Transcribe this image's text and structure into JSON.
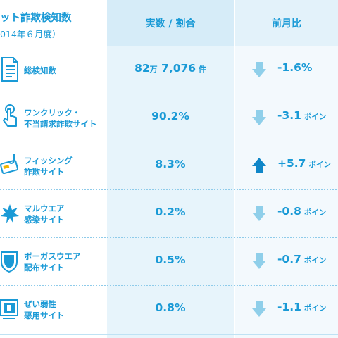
{
  "header": {
    "title": "ット詐欺検知数",
    "subtitle": "014年６月度）",
    "col_ratio": "実数 / 割合",
    "col_mom": "前月比"
  },
  "rows": [
    {
      "label1": "総検知数",
      "label2": "",
      "icon": "document-list-icon",
      "value_main": "82",
      "value_man": "万",
      "value_rest": " 7,076",
      "value_ken": " 件",
      "direction": "down",
      "change": "-1.6%",
      "unit": ""
    },
    {
      "label1": "ワンクリック・",
      "label2": "不当請求詐欺サイト",
      "icon": "hand-click-icon",
      "value": "90.2%",
      "direction": "down",
      "change": "-3.1",
      "unit": "ポイン"
    },
    {
      "label1": "フィッシング",
      "label2": "詐欺サイト",
      "icon": "fishing-hook-card-icon",
      "value": "8.3%",
      "direction": "up",
      "change": "+5.7",
      "unit": "ポイン"
    },
    {
      "label1": "マルウエア",
      "label2": "感染サイト",
      "icon": "malware-burst-icon",
      "value": "0.2%",
      "direction": "down",
      "change": "-0.8",
      "unit": "ポイン"
    },
    {
      "label1": "ボーガスウエア",
      "label2": "配布サイト",
      "icon": "fake-shield-icon",
      "value": "0.5%",
      "direction": "down",
      "change": "-0.7",
      "unit": "ポイン"
    },
    {
      "label1": "ぜい弱性",
      "label2": "悪用サイト",
      "icon": "vulnerable-window-icon",
      "value": "0.8%",
      "direction": "down",
      "change": "-1.1",
      "unit": "ポイン"
    }
  ],
  "colors": {
    "accent": "#1a9ad6",
    "arrow_down": "#8fcfea",
    "arrow_up": "#0f86c8",
    "column_bg": "#e7f4fb",
    "header_bg": "#d6ecf8"
  }
}
